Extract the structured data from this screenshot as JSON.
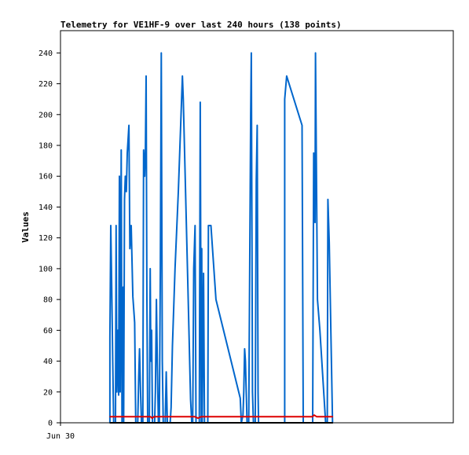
{
  "chart_data": {
    "type": "line",
    "title": "Telemetry for VE1HF-9 over last 240 hours (138 points)",
    "ylabel": "Values",
    "xlabel": "",
    "x_tick_labels": [
      "Jun 30"
    ],
    "y_ticks": [
      0,
      20,
      40,
      60,
      80,
      100,
      120,
      140,
      160,
      180,
      200,
      220,
      240
    ],
    "ylim": [
      0,
      255
    ],
    "xlim": [
      0,
      240
    ],
    "grid": false,
    "legend": "none",
    "series": [
      {
        "color": "#0066cc",
        "points": [
          [
            30.2,
            0
          ],
          [
            30.2,
            55
          ],
          [
            30.7,
            128
          ],
          [
            31.3,
            88
          ],
          [
            31.9,
            40
          ],
          [
            32.5,
            0
          ],
          [
            33.6,
            0
          ],
          [
            34.0,
            128
          ],
          [
            34.4,
            20
          ],
          [
            35.0,
            60
          ],
          [
            35.5,
            18
          ],
          [
            36.0,
            160
          ],
          [
            36.5,
            20
          ],
          [
            37.1,
            177
          ],
          [
            37.6,
            0
          ],
          [
            38.3,
            88
          ],
          [
            38.6,
            0
          ],
          [
            39.1,
            145
          ],
          [
            39.6,
            160
          ],
          [
            40.2,
            150
          ],
          [
            40.8,
            175
          ],
          [
            41.8,
            193
          ],
          [
            42.4,
            113
          ],
          [
            43.2,
            128
          ],
          [
            44.2,
            82
          ],
          [
            45.3,
            65
          ],
          [
            46.0,
            0
          ],
          [
            47.2,
            0
          ],
          [
            47.8,
            30
          ],
          [
            48.3,
            48
          ],
          [
            48.9,
            20
          ],
          [
            49.5,
            0
          ],
          [
            50.3,
            0
          ],
          [
            50.8,
            177
          ],
          [
            51.4,
            160
          ],
          [
            51.9,
            177
          ],
          [
            52.3,
            225
          ],
          [
            52.8,
            80
          ],
          [
            53.3,
            0
          ],
          [
            54.3,
            0
          ],
          [
            54.8,
            100
          ],
          [
            55.2,
            40
          ],
          [
            55.7,
            60
          ],
          [
            56.2,
            0
          ],
          [
            57.5,
            0
          ],
          [
            58.0,
            20
          ],
          [
            58.6,
            80
          ],
          [
            59.2,
            38
          ],
          [
            59.8,
            0
          ],
          [
            60.4,
            0
          ],
          [
            61.0,
            100
          ],
          [
            61.6,
            240
          ],
          [
            62.2,
            40
          ],
          [
            62.8,
            0
          ],
          [
            64.0,
            0
          ],
          [
            64.6,
            33
          ],
          [
            65.3,
            0
          ],
          [
            67.0,
            0
          ],
          [
            67.6,
            10
          ],
          [
            68.4,
            50
          ],
          [
            70.0,
            100
          ],
          [
            72.0,
            150
          ],
          [
            74.5,
            225
          ],
          [
            75.0,
            210
          ],
          [
            77.8,
            90
          ],
          [
            79.5,
            15
          ],
          [
            80.2,
            0
          ],
          [
            80.8,
            0
          ],
          [
            81.4,
            100
          ],
          [
            82.2,
            128
          ],
          [
            82.8,
            0
          ],
          [
            84.8,
            0
          ],
          [
            85.4,
            208
          ],
          [
            86.0,
            0
          ],
          [
            86.3,
            113
          ],
          [
            86.6,
            0
          ],
          [
            87.4,
            97
          ],
          [
            88.0,
            0
          ],
          [
            90.0,
            0
          ],
          [
            90.4,
            128
          ],
          [
            91.9,
            128
          ],
          [
            95.0,
            80
          ],
          [
            109.8,
            16
          ],
          [
            110.5,
            0
          ],
          [
            111.5,
            5
          ],
          [
            112.0,
            20
          ],
          [
            112.5,
            48
          ],
          [
            113.0,
            40
          ],
          [
            114.0,
            0
          ],
          [
            115.0,
            0
          ],
          [
            116.2,
            200
          ],
          [
            116.6,
            240
          ],
          [
            117.3,
            20
          ],
          [
            117.9,
            0
          ],
          [
            119.0,
            0
          ],
          [
            119.6,
            157
          ],
          [
            120.2,
            193
          ],
          [
            120.7,
            20
          ],
          [
            121.0,
            0
          ],
          [
            137.0,
            0
          ],
          [
            137.0,
            210
          ],
          [
            138.2,
            225
          ],
          [
            147.6,
            193
          ],
          [
            148.3,
            0
          ],
          [
            154.1,
            0
          ],
          [
            154.7,
            175
          ],
          [
            155.5,
            130
          ],
          [
            155.8,
            240
          ],
          [
            156.5,
            150
          ],
          [
            157.0,
            80
          ],
          [
            158.5,
            60
          ],
          [
            162.0,
            0
          ],
          [
            163.0,
            0
          ],
          [
            163.4,
            145
          ],
          [
            164.2,
            117
          ],
          [
            166.2,
            0
          ]
        ]
      },
      {
        "color": "#dd0000",
        "points": [
          [
            30.0,
            4
          ],
          [
            55.0,
            4
          ],
          [
            56.0,
            3
          ],
          [
            57.0,
            4
          ],
          [
            82.0,
            4
          ],
          [
            84.0,
            3
          ],
          [
            86.0,
            4
          ],
          [
            154.0,
            4
          ],
          [
            155.0,
            5
          ],
          [
            156.5,
            4
          ],
          [
            166.5,
            4
          ]
        ]
      },
      {
        "color": "#000000",
        "points": [
          [
            30.0,
            0
          ],
          [
            166.5,
            0
          ]
        ]
      }
    ]
  }
}
